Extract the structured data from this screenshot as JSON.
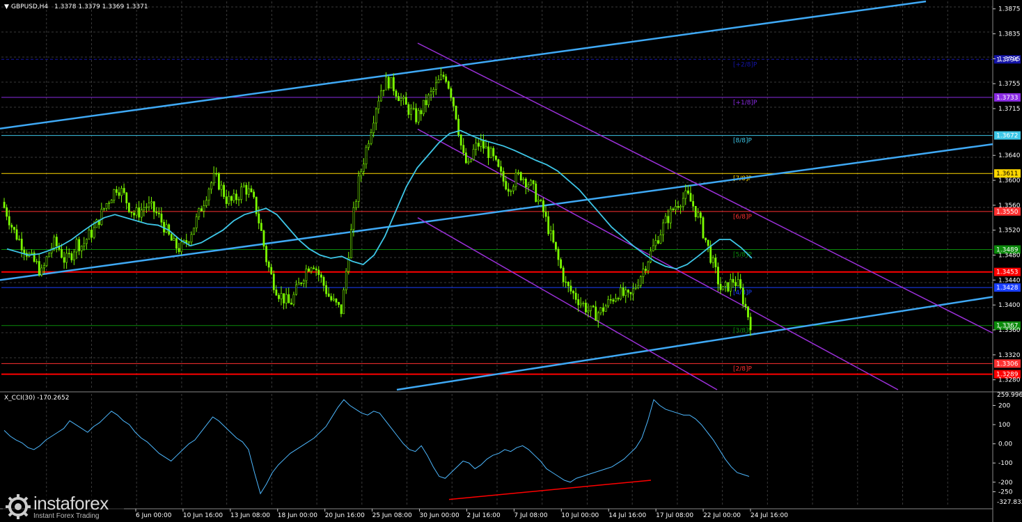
{
  "header": {
    "symbol": "GBPUSD,H4",
    "ohlc": "1.3378 1.3379 1.3369 1.3371"
  },
  "cci_header": "X_CCI(30) -170.2652",
  "colors": {
    "background": "#000000",
    "candle": "#7cfc00",
    "ma": "#3ec7e8",
    "channel_blue": "#3fa9f5",
    "channel_purple": "#9b30d9",
    "red_line": "#ff0000",
    "cci": "#4db8ff"
  },
  "chart_data": {
    "type": "candlestick",
    "price_range": [
      1.3264,
      1.3887
    ],
    "price_ticks": [
      "1.3875",
      "1.3835",
      "1.3795",
      "1.3755",
      "1.3715",
      "1.3672",
      "1.3640",
      "1.3611",
      "1.3600",
      "1.3560",
      "1.3550",
      "1.3520",
      "1.3480",
      "1.3440",
      "1.3400",
      "1.3360",
      "1.3320",
      "1.3306",
      "1.3280"
    ],
    "x_ticks": [
      "6 Jun 00:00",
      "10 Jun 16:00",
      "13 Jun 08:00",
      "18 Jun 00:00",
      "20 Jun 16:00",
      "25 Jun 08:00",
      "30 Jun 00:00",
      "2 Jul 16:00",
      "7 Jul 08:00",
      "10 Jul 00:00",
      "14 Jul 16:00",
      "17 Jul 08:00",
      "22 Jul 00:00",
      "24 Jul 16:00"
    ],
    "close_path": [
      1.3565,
      1.3545,
      1.352,
      1.3505,
      1.349,
      1.3475,
      1.3465,
      1.345,
      1.348,
      1.35,
      1.349,
      1.347,
      1.348,
      1.35,
      1.3495,
      1.351,
      1.352,
      1.354,
      1.356,
      1.3575,
      1.359,
      1.358,
      1.356,
      1.3545,
      1.355,
      1.356,
      1.3555,
      1.3545,
      1.353,
      1.351,
      1.3495,
      1.349,
      1.35,
      1.352,
      1.354,
      1.3565,
      1.359,
      1.3605,
      1.359,
      1.357,
      1.3565,
      1.3575,
      1.359,
      1.358,
      1.356,
      1.352,
      1.347,
      1.344,
      1.342,
      1.341,
      1.34,
      1.342,
      1.344,
      1.346,
      1.347,
      1.345,
      1.343,
      1.341,
      1.34,
      1.339,
      1.347,
      1.354,
      1.36,
      1.364,
      1.368,
      1.372,
      1.375,
      1.376,
      1.375,
      1.3735,
      1.372,
      1.371,
      1.37,
      1.3715,
      1.373,
      1.3745,
      1.376,
      1.377,
      1.374,
      1.37,
      1.364,
      1.362,
      1.365,
      1.366,
      1.365,
      1.364,
      1.362,
      1.36,
      1.359,
      1.36,
      1.361,
      1.36,
      1.359,
      1.357,
      1.355,
      1.352,
      1.349,
      1.346,
      1.343,
      1.342,
      1.341,
      1.34,
      1.339,
      1.3385,
      1.339,
      1.34,
      1.341,
      1.342,
      1.3415,
      1.341,
      1.343,
      1.345,
      1.347,
      1.349,
      1.351,
      1.353,
      1.3545,
      1.356,
      1.357,
      1.3575,
      1.356,
      1.354,
      1.351,
      1.348,
      1.345,
      1.342,
      1.343,
      1.344,
      1.343,
      1.34,
      1.3371
    ],
    "ma_path": [
      1.349,
      1.3485,
      1.348,
      1.3482,
      1.3488,
      1.3495,
      1.3505,
      1.3518,
      1.353,
      1.354,
      1.3545,
      1.354,
      1.3535,
      1.353,
      1.3528,
      1.352,
      1.3505,
      1.3495,
      1.35,
      1.351,
      1.352,
      1.3535,
      1.3545,
      1.355,
      1.3555,
      1.3545,
      1.3525,
      1.3505,
      1.349,
      1.348,
      1.3475,
      1.3478,
      1.347,
      1.3465,
      1.348,
      1.351,
      1.355,
      1.359,
      1.362,
      1.364,
      1.366,
      1.3675,
      1.368,
      1.3672,
      1.3665,
      1.366,
      1.3655,
      1.3648,
      1.364,
      1.3632,
      1.3625,
      1.3615,
      1.36,
      1.3585,
      1.3565,
      1.3545,
      1.3525,
      1.351,
      1.3495,
      1.3482,
      1.347,
      1.3462,
      1.3458,
      1.3465,
      1.3478,
      1.3492,
      1.3505,
      1.3505,
      1.3492,
      1.3475
    ],
    "ma_x_range": [
      10,
      1080
    ],
    "murray_levels": [
      {
        "label": "[+2/8]P",
        "price": 1.3794,
        "axis_label": "1.3794",
        "color": "#1414a8",
        "dashed": true
      },
      {
        "label": "[+1/8]P",
        "price": 1.3733,
        "axis_label": "1.3733",
        "color": "#8a2be2",
        "dashed": false
      },
      {
        "label": "[8/8]P",
        "price": 1.3672,
        "axis_label": "1.3672",
        "color": "#3ec7e8",
        "dashed": false
      },
      {
        "label": "[7/8]P",
        "price": 1.3611,
        "axis_label": "1.3611",
        "color": "#ffd700",
        "dashed": false
      },
      {
        "label": "[6/8]P",
        "price": 1.355,
        "axis_label": "1.3550",
        "color": "#ff3030",
        "dashed": false
      },
      {
        "label": "[5/8]P",
        "price": 1.3489,
        "axis_label": "1.3489",
        "color": "#0b8a0b",
        "dashed": false
      },
      {
        "label": "",
        "price": 1.3453,
        "axis_label": "1.3453",
        "color": "#ff0000",
        "dashed": false,
        "thick": true
      },
      {
        "label": "[4/8]P",
        "price": 1.3428,
        "axis_label": "1.3428",
        "color": "#1a3fff",
        "dashed": false
      },
      {
        "label": "[3/8]P",
        "price": 1.3367,
        "axis_label": "1.3367",
        "color": "#0b8a0b",
        "dashed": false
      },
      {
        "label": "[2/8]P",
        "price": 1.3306,
        "axis_label": "1.3306",
        "color": "#ff3030",
        "dashed": false
      },
      {
        "label": "",
        "price": 1.3289,
        "axis_label": "1.3289",
        "color": "#ff0000",
        "dashed": false,
        "thick": true
      }
    ],
    "cci": {
      "range": [
        -327.832,
        259.9969
      ],
      "ticks": [
        "200",
        "100",
        "0.00",
        "-100",
        "-200",
        "-250"
      ],
      "scale_labels": [
        "259.9969",
        "-327.832"
      ],
      "series": [
        70,
        40,
        20,
        5,
        -20,
        -30,
        -10,
        20,
        40,
        60,
        80,
        120,
        100,
        80,
        60,
        90,
        110,
        140,
        170,
        150,
        120,
        100,
        60,
        30,
        10,
        -20,
        -50,
        -70,
        -90,
        -60,
        -30,
        0,
        20,
        60,
        100,
        140,
        120,
        90,
        60,
        30,
        10,
        -30,
        -150,
        -260,
        -210,
        -150,
        -110,
        -80,
        -50,
        -30,
        -10,
        10,
        30,
        60,
        90,
        140,
        190,
        230,
        200,
        180,
        160,
        150,
        170,
        160,
        120,
        80,
        40,
        0,
        -30,
        -40,
        -10,
        -60,
        -120,
        -170,
        -180,
        -150,
        -120,
        -90,
        -100,
        -130,
        -110,
        -80,
        -60,
        -50,
        -30,
        -40,
        -20,
        -10,
        -30,
        -60,
        -90,
        -130,
        -150,
        -170,
        -190,
        -200,
        -180,
        -170,
        -160,
        -150,
        -140,
        -130,
        -120,
        -100,
        -80,
        -50,
        -20,
        30,
        120,
        230,
        200,
        180,
        170,
        160,
        150,
        150,
        130,
        100,
        60,
        20,
        -30,
        -80,
        -120,
        -150,
        -160,
        -170
      ],
      "divergence": [
        [
          -290,
          -190
        ]
      ]
    }
  },
  "watermark": {
    "brand": "instaforex",
    "tagline": "Instant Forex Trading"
  }
}
